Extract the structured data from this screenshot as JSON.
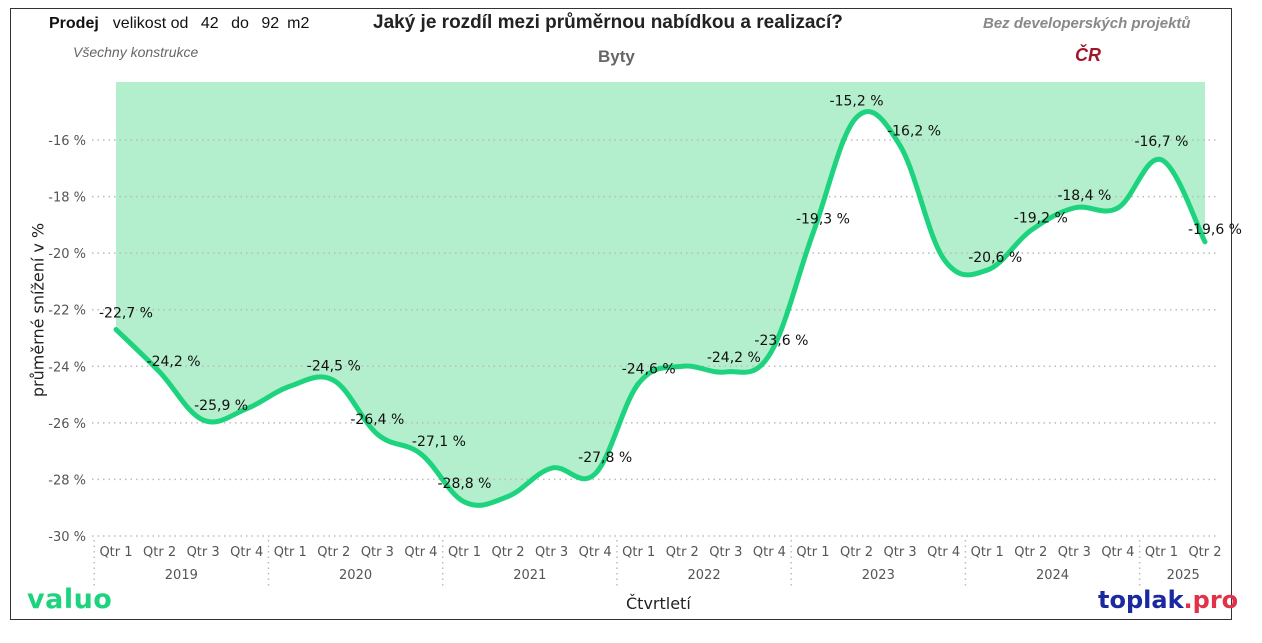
{
  "header": {
    "filter_mode": "Prodej",
    "size_label": "velikost od",
    "size_from": "42",
    "size_to_label": "do",
    "size_to": "92",
    "size_unit": "m2",
    "construction": "Všechny konstrukce",
    "title": "Jaký je rozdíl mezi průměrnou nabídkou a realizací?",
    "subtitle": "Byty",
    "projects_note": "Bez developerských projektů",
    "region": "ČR"
  },
  "logos": {
    "left": "valuo",
    "right_main": "toplak",
    "right_suffix": ".pro"
  },
  "colors": {
    "line": "#1ed37e",
    "fill": "#b3eecd",
    "region": "#a0172a",
    "toplak_blue": "#1a2a9e",
    "toplak_red": "#e0334a"
  },
  "chart_data": {
    "type": "line",
    "title": "Jaký je rozdíl mezi průměrnou nabídkou a realizací?",
    "subtitle": "Byty",
    "xlabel": "Čtvrtletí",
    "ylabel": "průměrné snížení v %",
    "ylim": [
      -30,
      -14.1
    ],
    "yticks": [
      -16,
      -18,
      -20,
      -22,
      -24,
      -26,
      -28,
      -30
    ],
    "ytick_labels": [
      "-16 %",
      "-18 %",
      "-20 %",
      "-22 %",
      "-24 %",
      "-26 %",
      "-28 %",
      "-30 %"
    ],
    "grid": "horizontal dotted",
    "years": [
      {
        "label": "2019",
        "quarters": [
          "Qtr 1",
          "Qtr 2",
          "Qtr 3",
          "Qtr 4"
        ]
      },
      {
        "label": "2020",
        "quarters": [
          "Qtr 1",
          "Qtr 2",
          "Qtr 3",
          "Qtr 4"
        ]
      },
      {
        "label": "2021",
        "quarters": [
          "Qtr 1",
          "Qtr 2",
          "Qtr 3",
          "Qtr 4"
        ]
      },
      {
        "label": "2022",
        "quarters": [
          "Qtr 1",
          "Qtr 2",
          "Qtr 3",
          "Qtr 4"
        ]
      },
      {
        "label": "2023",
        "quarters": [
          "Qtr 1",
          "Qtr 2",
          "Qtr 3",
          "Qtr 4"
        ]
      },
      {
        "label": "2024",
        "quarters": [
          "Qtr 1",
          "Qtr 2",
          "Qtr 3",
          "Qtr 4"
        ]
      },
      {
        "label": "2025",
        "quarters": [
          "Qtr 1",
          "Qtr 2"
        ]
      }
    ],
    "series": [
      {
        "name": "průměrné snížení v %",
        "values": [
          -22.7,
          -24.2,
          -25.9,
          -25.5,
          -24.7,
          -24.5,
          -26.4,
          -27.1,
          -28.8,
          -28.6,
          -27.6,
          -27.8,
          -24.6,
          -24.0,
          -24.2,
          -23.6,
          -19.3,
          -15.2,
          -16.2,
          -20.2,
          -20.6,
          -19.2,
          -18.4,
          -18.4,
          -16.7,
          -19.6
        ],
        "labels": [
          "-22,7 %",
          "-24,2 %",
          "-25,9 %",
          "",
          "",
          "-24,5 %",
          "-26,4 %",
          "-27,1 %",
          "-28,8 %",
          "",
          "",
          "-27,8 %",
          "-24,6 %",
          "",
          "-24,2 %",
          "-23,6 %",
          "-19,3 %",
          "-15,2 %",
          "-16,2 %",
          "",
          "-20,6 %",
          "-19,2 %",
          "-18,4 %",
          "",
          "-16,7 %",
          "-19,6 %"
        ]
      }
    ]
  }
}
